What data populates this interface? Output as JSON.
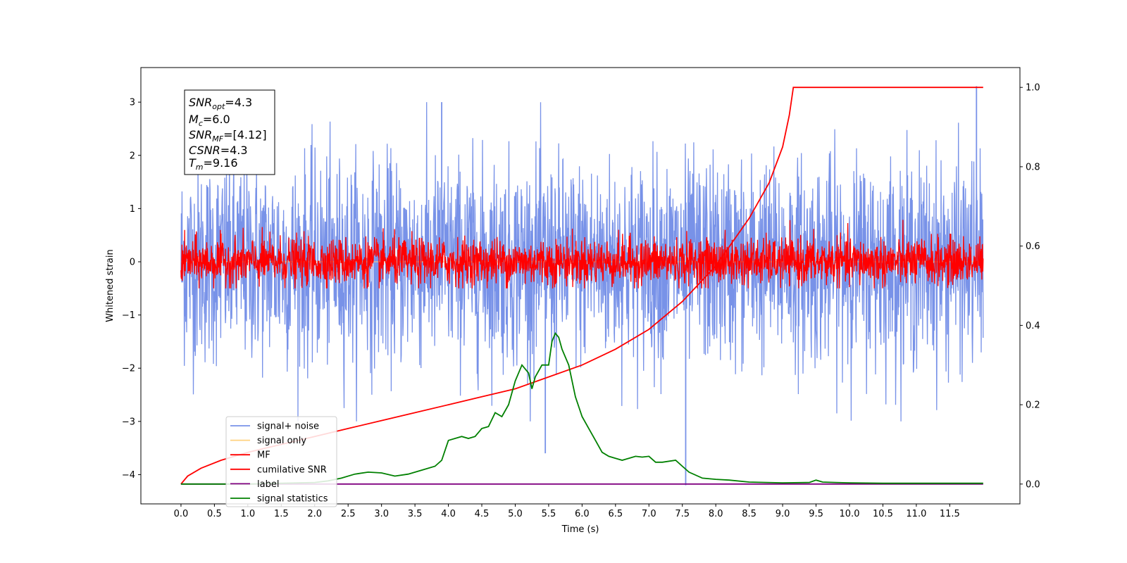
{
  "chart_data": {
    "type": "line",
    "xlabel": "Time (s)",
    "ylabel": "Whitened strain",
    "xlim": [
      -0.6,
      12.55
    ],
    "ylim": [
      -4.55,
      3.65
    ],
    "y2lim": [
      -0.05,
      1.05
    ],
    "x_ticks": [
      "0.0",
      "0.5",
      "1.0",
      "1.5",
      "2.0",
      "2.5",
      "3.0",
      "3.5",
      "4.0",
      "4.5",
      "5.0",
      "5.5",
      "6.0",
      "6.5",
      "7.0",
      "7.5",
      "8.0",
      "8.5",
      "9.0",
      "9.5",
      "10.0",
      "10.5",
      "11.0",
      "11.5"
    ],
    "y_ticks": [
      -4,
      -3,
      -2,
      -1,
      0,
      1,
      2,
      3
    ],
    "y2_ticks": [
      "0.0",
      "0.2",
      "0.4",
      "0.6",
      "0.8",
      "1.0"
    ],
    "series": [
      {
        "name": "signal+ noise",
        "color": "#7892e8",
        "axis": "left",
        "x_range": [
          0.0,
          12.0
        ],
        "envelope": {
          "typical_low": -1.4,
          "typical_high": 1.6,
          "extreme_low": -3.0,
          "extreme_high": 3.0
        },
        "spikes": [
          {
            "x": 5.45,
            "y": -3.6
          },
          {
            "x": 7.55,
            "y": -4.2
          },
          {
            "x": 11.9,
            "y": 3.3
          },
          {
            "x": 3.9,
            "y": 3.0
          }
        ]
      },
      {
        "name": "signal only",
        "color": "#ffd27f",
        "axis": "left",
        "x": [
          0.0,
          12.0
        ],
        "y": [
          0.0,
          0.0
        ]
      },
      {
        "name": "MF",
        "color": "#ff0000",
        "axis": "left",
        "x_range": [
          0.0,
          12.0
        ],
        "envelope": {
          "typical_low": -0.35,
          "typical_high": 0.45,
          "extreme_low": -0.5,
          "extreme_high": 1.0
        }
      },
      {
        "name": "cumilative SNR",
        "color": "#ff0000",
        "axis": "right",
        "x": [
          0.0,
          0.1,
          0.3,
          0.6,
          1.0,
          1.5,
          2.0,
          2.5,
          3.0,
          3.5,
          4.0,
          4.5,
          5.0,
          5.5,
          6.0,
          6.5,
          7.0,
          7.5,
          8.0,
          8.5,
          8.8,
          9.0,
          9.1,
          9.16,
          9.5,
          10.0,
          10.5,
          11.0,
          11.5,
          12.0
        ],
        "y": [
          0.0,
          0.02,
          0.04,
          0.06,
          0.08,
          0.1,
          0.12,
          0.14,
          0.16,
          0.18,
          0.2,
          0.22,
          0.24,
          0.27,
          0.3,
          0.34,
          0.39,
          0.46,
          0.55,
          0.67,
          0.76,
          0.85,
          0.93,
          1.0,
          1.0,
          1.0,
          1.0,
          1.0,
          1.0,
          1.0
        ]
      },
      {
        "name": "label",
        "color": "#800080",
        "axis": "right",
        "x": [
          0.0,
          12.0
        ],
        "y": [
          0.0,
          0.0
        ]
      },
      {
        "name": "signal statistics",
        "color": "#008000",
        "axis": "right",
        "x": [
          0.0,
          0.5,
          1.0,
          1.5,
          2.0,
          2.2,
          2.4,
          2.6,
          2.8,
          3.0,
          3.2,
          3.4,
          3.6,
          3.8,
          3.9,
          4.0,
          4.2,
          4.3,
          4.4,
          4.5,
          4.6,
          4.7,
          4.8,
          4.9,
          5.0,
          5.1,
          5.2,
          5.25,
          5.3,
          5.4,
          5.5,
          5.55,
          5.6,
          5.65,
          5.7,
          5.8,
          5.9,
          6.0,
          6.1,
          6.2,
          6.3,
          6.4,
          6.5,
          6.6,
          6.7,
          6.8,
          6.9,
          7.0,
          7.1,
          7.2,
          7.4,
          7.5,
          7.6,
          7.8,
          8.0,
          8.2,
          8.5,
          9.0,
          9.4,
          9.5,
          9.6,
          9.8,
          10.0,
          10.5,
          11.0,
          11.5,
          12.0
        ],
        "y": [
          0.0,
          0.0,
          0.0,
          0.002,
          0.004,
          0.008,
          0.015,
          0.025,
          0.03,
          0.028,
          0.02,
          0.025,
          0.035,
          0.045,
          0.06,
          0.11,
          0.12,
          0.115,
          0.12,
          0.14,
          0.145,
          0.18,
          0.17,
          0.2,
          0.26,
          0.3,
          0.28,
          0.24,
          0.27,
          0.3,
          0.3,
          0.36,
          0.38,
          0.37,
          0.34,
          0.3,
          0.22,
          0.17,
          0.14,
          0.11,
          0.08,
          0.07,
          0.065,
          0.06,
          0.065,
          0.07,
          0.068,
          0.07,
          0.055,
          0.055,
          0.06,
          0.045,
          0.03,
          0.015,
          0.012,
          0.01,
          0.005,
          0.003,
          0.004,
          0.01,
          0.005,
          0.004,
          0.003,
          0.002,
          0.002,
          0.002,
          0.002
        ]
      }
    ],
    "legend": {
      "placement": "lower-left"
    }
  },
  "info_box": {
    "snr_opt_base": "SNR",
    "snr_opt_sub": "opt",
    "snr_opt_value": "=4.3",
    "mc_base": "M",
    "mc_sub": "c",
    "mc_value": "=6.0",
    "snr_mf_base": "SNR",
    "snr_mf_sub": "MF",
    "snr_mf_value": "=[4.12]",
    "csnr_base": "CSNR",
    "csnr_value": "=4.3",
    "tm_base": "T",
    "tm_sub": "m",
    "tm_value": "=9.16"
  }
}
